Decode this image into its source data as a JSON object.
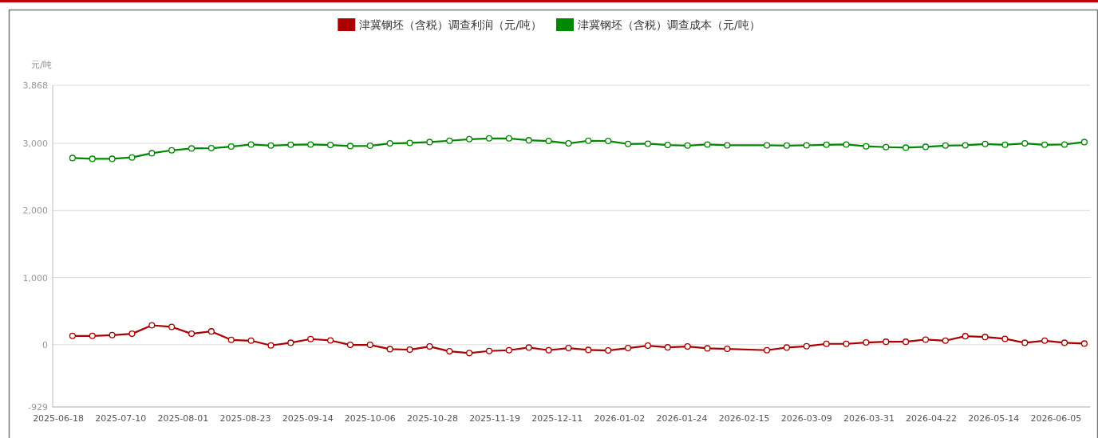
{
  "chart_data": {
    "type": "line",
    "ylabel": "元/吨",
    "legend": "top",
    "grid": "y",
    "marker": "circle",
    "line_style": "solid",
    "x": [
      "2025-06-23",
      "2025-06-30",
      "2025-07-07",
      "2025-07-14",
      "2025-07-21",
      "2025-07-28",
      "2025-08-04",
      "2025-08-11",
      "2025-08-18",
      "2025-08-25",
      "2025-09-01",
      "2025-09-08",
      "2025-09-15",
      "2025-09-22",
      "2025-09-29",
      "2025-10-06",
      "2025-10-13",
      "2025-10-20",
      "2025-10-27",
      "2025-11-03",
      "2025-11-10",
      "2025-11-17",
      "2025-11-24",
      "2025-12-01",
      "2025-12-08",
      "2025-12-15",
      "2025-12-22",
      "2025-12-29",
      "2026-01-05",
      "2026-01-12",
      "2026-01-19",
      "2026-01-26",
      "2026-02-02",
      "2026-02-09",
      "2026-02-23",
      "2026-03-02",
      "2026-03-09",
      "2026-03-16",
      "2026-03-23",
      "2026-03-30",
      "2026-04-06",
      "2026-04-13",
      "2026-04-20",
      "2026-04-27",
      "2026-05-04",
      "2026-05-11",
      "2026-05-18",
      "2026-05-25",
      "2026-06-01",
      "2026-06-08",
      "2026-06-15"
    ],
    "series": [
      {
        "name": "津冀钢坯（含税）调查利润（元/吨）",
        "color": "#aa0000",
        "values": [
          130,
          130,
          142,
          162,
          288,
          265,
          162,
          197,
          71,
          59,
          -12,
          28,
          83,
          63,
          -4,
          -4,
          -67,
          -75,
          -28,
          -99,
          -126,
          -95,
          -83,
          -43,
          -83,
          -51,
          -79,
          -87,
          -51,
          -16,
          -40,
          -28,
          -55,
          -63,
          -83,
          -43,
          -24,
          12,
          12,
          32,
          43,
          43,
          75,
          59,
          126,
          114,
          87,
          28,
          59,
          28,
          16
        ]
      },
      {
        "name": "津冀钢坯（含税）调查成本（元/吨）",
        "color": "#008800",
        "values": [
          2783,
          2771,
          2771,
          2791,
          2854,
          2897,
          2925,
          2929,
          2953,
          2984,
          2968,
          2980,
          2984,
          2976,
          2961,
          2965,
          3000,
          3008,
          3020,
          3040,
          3063,
          3075,
          3075,
          3047,
          3036,
          3000,
          3040,
          3036,
          2992,
          2996,
          2976,
          2968,
          2984,
          2972,
          2972,
          2968,
          2972,
          2980,
          2984,
          2957,
          2945,
          2937,
          2949,
          2968,
          2972,
          2992,
          2980,
          3000,
          2980,
          2984,
          3020
        ]
      }
    ],
    "xlim": [
      "2025-06-16",
      "2026-06-17"
    ],
    "xticks": [
      "2025-06-18",
      "2025-07-10",
      "2025-08-01",
      "2025-08-23",
      "2025-09-14",
      "2025-10-06",
      "2025-10-28",
      "2025-11-19",
      "2025-12-11",
      "2026-01-02",
      "2026-01-24",
      "2026-02-15",
      "2026-03-09",
      "2026-03-31",
      "2026-04-22",
      "2026-05-14",
      "2026-06-05"
    ],
    "ylim": [
      -929,
      3868
    ],
    "yticks": [
      -929,
      0,
      {
        "value": 1000,
        "label": "1,000"
      },
      {
        "value": 2000,
        "label": "2,000"
      },
      {
        "value": 3000,
        "label": "3,000"
      },
      {
        "value": 3868,
        "label": "3,868"
      }
    ]
  }
}
